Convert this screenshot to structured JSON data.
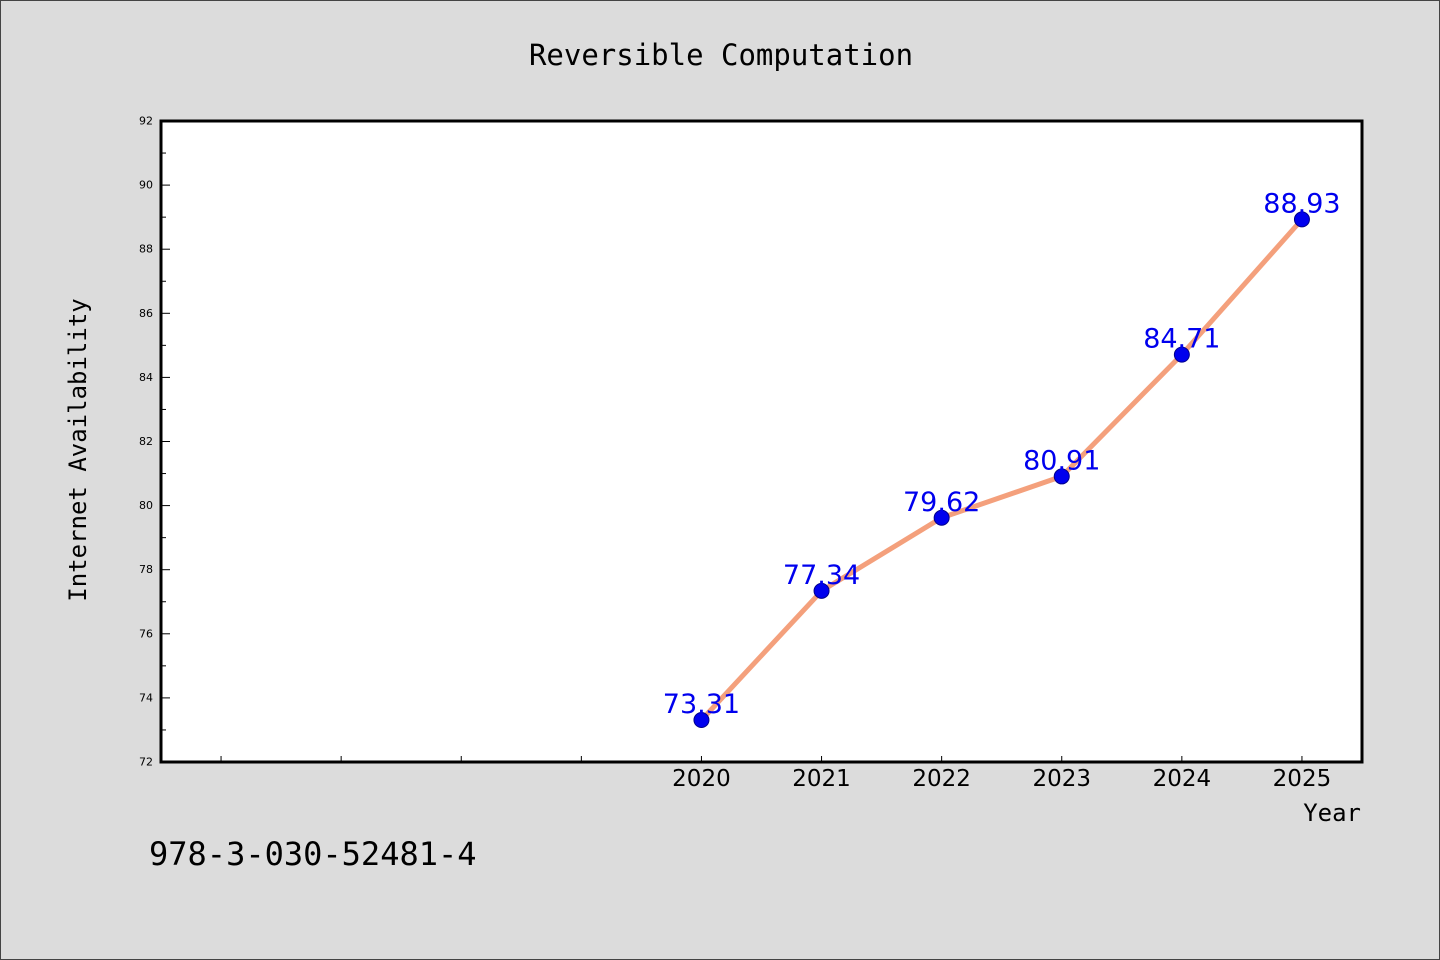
{
  "chart_data": {
    "type": "line",
    "title": "Reversible Computation",
    "xlabel": "Year",
    "ylabel": "Internet Availability",
    "x": [
      2020,
      2021,
      2022,
      2023,
      2024,
      2025
    ],
    "x_tick_labels": [
      "2020",
      "2021",
      "2022",
      "2023",
      "2024",
      "2025"
    ],
    "xlim": [
      2015.5,
      2025.5
    ],
    "ylim": [
      72,
      92
    ],
    "y_ticks": [
      72,
      74,
      76,
      78,
      80,
      82,
      84,
      86,
      88,
      90,
      92
    ],
    "y_tick_labels": [
      "72",
      "74",
      "76",
      "78",
      "80",
      "82",
      "84",
      "86",
      "88",
      "90",
      "92"
    ],
    "series": [
      {
        "values": [
          73.31,
          77.34,
          79.62,
          80.91,
          84.71,
          88.93
        ],
        "data_labels": [
          "73.31",
          "77.34",
          "79.62",
          "80.91",
          "84.71",
          "88.93"
        ],
        "line_color": "#f4a07c",
        "marker_color": "#0000ee"
      }
    ],
    "grid": false,
    "legend": "none",
    "background_color": "#dcdcdc",
    "plot_background_color": "#ffffff",
    "label_color": "#0000ee"
  },
  "annotation": {
    "text": "978-3-030-52481-4"
  }
}
